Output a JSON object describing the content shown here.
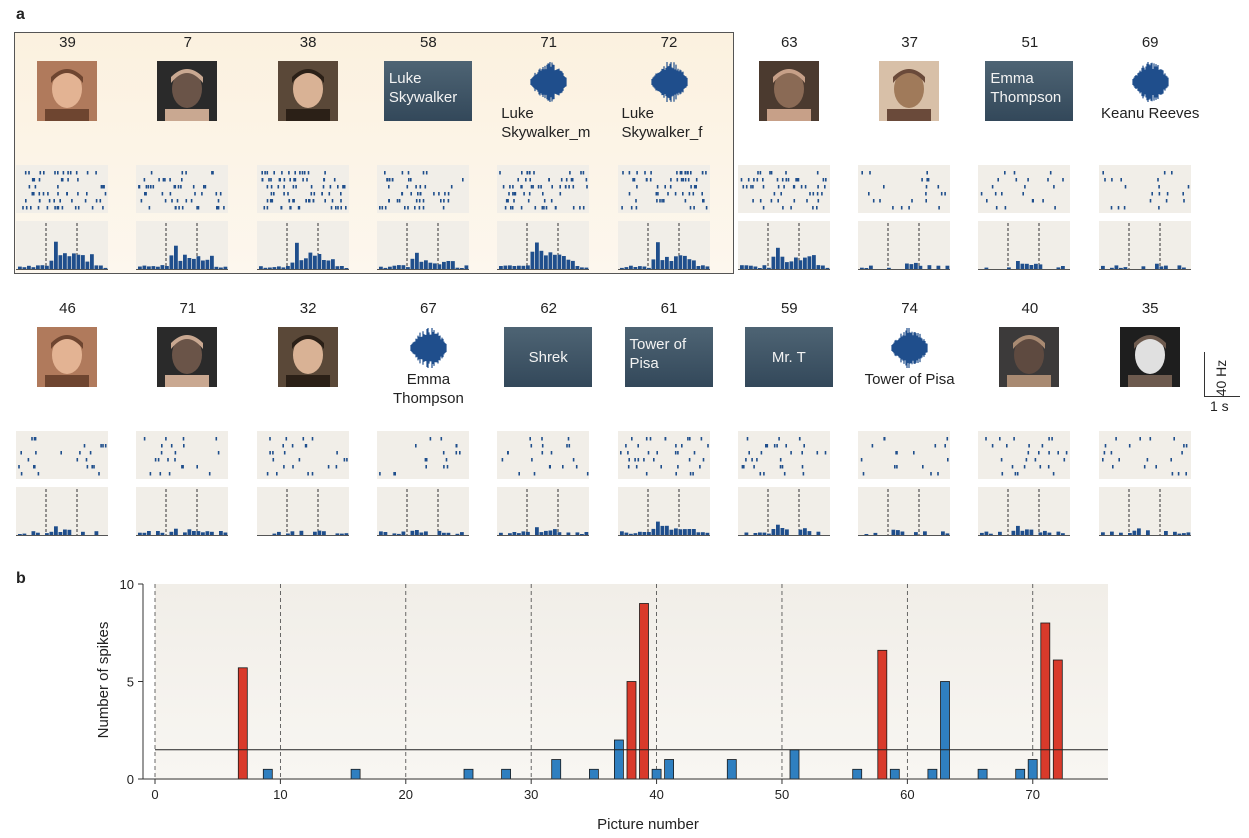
{
  "panel_a_label": "a",
  "panel_b_label": "b",
  "scale_bar": {
    "vertical": "40 Hz",
    "horizontal": "1 s"
  },
  "stimuli_row1": [
    {
      "num": "39",
      "kind": "photo",
      "caption": ""
    },
    {
      "num": "7",
      "kind": "photo",
      "caption": ""
    },
    {
      "num": "38",
      "kind": "photo",
      "caption": ""
    },
    {
      "num": "58",
      "kind": "text",
      "text": "Luke Skywalker",
      "caption": ""
    },
    {
      "num": "71",
      "kind": "audio",
      "caption": "Luke Skywalker_m"
    },
    {
      "num": "72",
      "kind": "audio",
      "caption": "Luke Skywalker_f"
    },
    {
      "num": "63",
      "kind": "photo",
      "caption": ""
    },
    {
      "num": "37",
      "kind": "photo",
      "caption": ""
    },
    {
      "num": "51",
      "kind": "text",
      "text": "Emma Thompson",
      "caption": ""
    },
    {
      "num": "69",
      "kind": "audio",
      "caption": "Keanu Reeves"
    }
  ],
  "stimuli_row2": [
    {
      "num": "46",
      "kind": "photo",
      "caption": ""
    },
    {
      "num": "71",
      "kind": "photo",
      "caption": ""
    },
    {
      "num": "32",
      "kind": "photo",
      "caption": ""
    },
    {
      "num": "67",
      "kind": "audio",
      "caption": "Emma Thompson"
    },
    {
      "num": "62",
      "kind": "text",
      "text": "Shrek",
      "caption": ""
    },
    {
      "num": "61",
      "kind": "text",
      "text": "Tower of Pisa",
      "caption": ""
    },
    {
      "num": "59",
      "kind": "text",
      "text": "Mr. T",
      "caption": ""
    },
    {
      "num": "74",
      "kind": "audio",
      "caption": "Tower of Pisa"
    },
    {
      "num": "40",
      "kind": "photo",
      "caption": ""
    },
    {
      "num": "35",
      "kind": "photo",
      "caption": ""
    }
  ],
  "response_level_row1": [
    0.9,
    0.75,
    0.85,
    0.5,
    0.9,
    0.85,
    0.7,
    0.15,
    0.15,
    0.12
  ],
  "response_level_row2": [
    0.2,
    0.15,
    0.15,
    0.1,
    0.15,
    0.35,
    0.25,
    0.1,
    0.2,
    0.12
  ],
  "colors": {
    "responsive": "#d93a2b",
    "nonresponsive": "#2f7fc0",
    "raster": "#1f4e8c",
    "frame": "#555555"
  },
  "chart_data": {
    "type": "bar",
    "xlabel": "Picture number",
    "ylabel": "Number of spikes",
    "xlim": [
      0,
      76
    ],
    "ylim": [
      0,
      10
    ],
    "xticks": [
      0,
      10,
      20,
      30,
      40,
      50,
      60,
      70
    ],
    "yticks": [
      0,
      5,
      10
    ],
    "threshold": 1.5,
    "grid_vertical_dashed": [
      10,
      20,
      30,
      40,
      50,
      60,
      70
    ],
    "bars": [
      {
        "x": 7,
        "value": 5.7,
        "responsive": true
      },
      {
        "x": 9,
        "value": 0.5,
        "responsive": false
      },
      {
        "x": 16,
        "value": 0.5,
        "responsive": false
      },
      {
        "x": 25,
        "value": 0.5,
        "responsive": false
      },
      {
        "x": 28,
        "value": 0.5,
        "responsive": false
      },
      {
        "x": 32,
        "value": 1.0,
        "responsive": false
      },
      {
        "x": 35,
        "value": 0.5,
        "responsive": false
      },
      {
        "x": 37,
        "value": 2.0,
        "responsive": false
      },
      {
        "x": 38,
        "value": 5.0,
        "responsive": true
      },
      {
        "x": 39,
        "value": 9.0,
        "responsive": true
      },
      {
        "x": 40,
        "value": 0.5,
        "responsive": false
      },
      {
        "x": 41,
        "value": 1.0,
        "responsive": false
      },
      {
        "x": 46,
        "value": 1.0,
        "responsive": false
      },
      {
        "x": 51,
        "value": 1.5,
        "responsive": false
      },
      {
        "x": 56,
        "value": 0.5,
        "responsive": false
      },
      {
        "x": 58,
        "value": 6.6,
        "responsive": true
      },
      {
        "x": 59,
        "value": 0.5,
        "responsive": false
      },
      {
        "x": 62,
        "value": 0.5,
        "responsive": false
      },
      {
        "x": 63,
        "value": 5.0,
        "responsive": false
      },
      {
        "x": 66,
        "value": 0.5,
        "responsive": false
      },
      {
        "x": 69,
        "value": 0.5,
        "responsive": false
      },
      {
        "x": 70,
        "value": 1.0,
        "responsive": false
      },
      {
        "x": 71,
        "value": 8.0,
        "responsive": true
      },
      {
        "x": 72,
        "value": 6.1,
        "responsive": true
      }
    ]
  }
}
